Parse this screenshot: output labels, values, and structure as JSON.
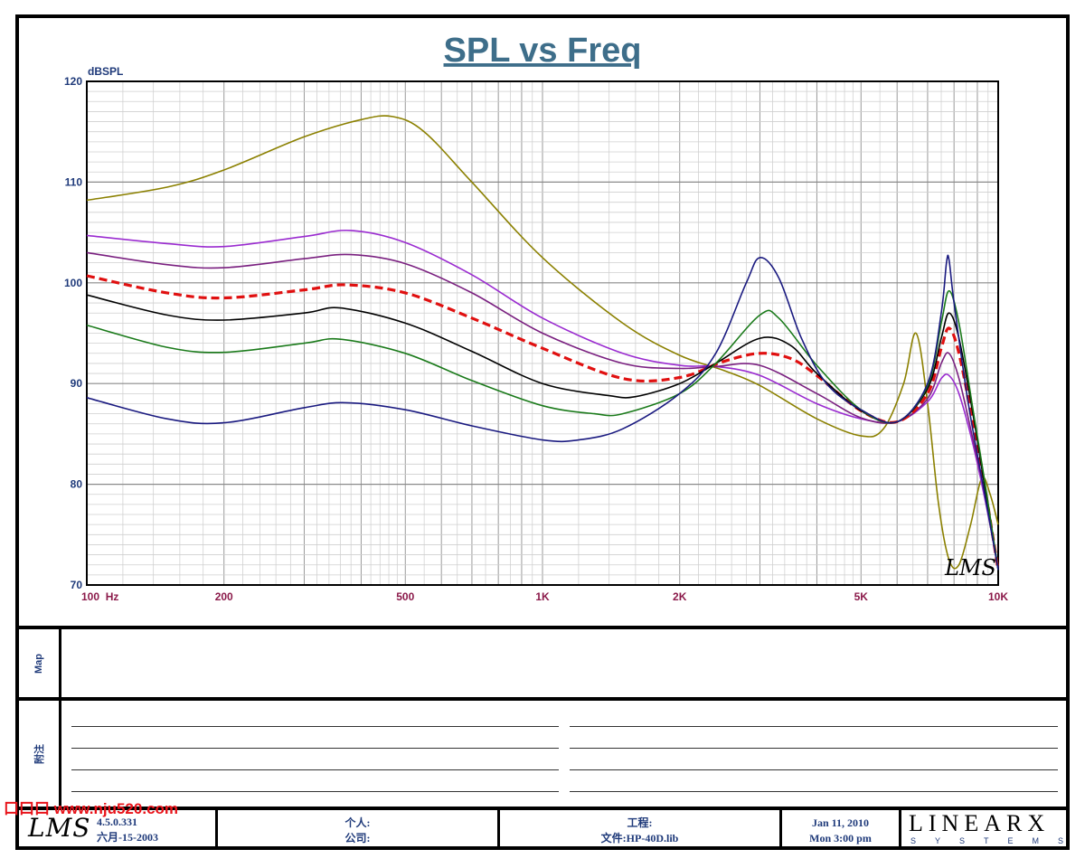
{
  "chart_data": {
    "type": "line",
    "title": "SPL vs Freq",
    "ylabel": "dBSPL",
    "xscale": "log",
    "xlim": [
      100,
      10000
    ],
    "ylim": [
      70,
      120
    ],
    "grid": true,
    "y_ticks": [
      70,
      80,
      90,
      100,
      110,
      120
    ],
    "x_ticks": [
      {
        "value": 100,
        "label": "100  Hz"
      },
      {
        "value": 200,
        "label": "200"
      },
      {
        "value": 500,
        "label": "500"
      },
      {
        "value": 1000,
        "label": "1K"
      },
      {
        "value": 2000,
        "label": "2K"
      },
      {
        "value": 5000,
        "label": "5K"
      },
      {
        "value": 10000,
        "label": "10K"
      }
    ],
    "series": [
      {
        "color": "#8b8000",
        "points": [
          [
            100,
            108.2
          ],
          [
            150,
            109.5
          ],
          [
            200,
            111.2
          ],
          [
            300,
            114.5
          ],
          [
            400,
            116.2
          ],
          [
            470,
            116.5
          ],
          [
            550,
            115.0
          ],
          [
            700,
            110.0
          ],
          [
            1000,
            102.5
          ],
          [
            1500,
            96.0
          ],
          [
            2000,
            92.8
          ],
          [
            2500,
            91.3
          ],
          [
            3000,
            89.8
          ],
          [
            4000,
            86.5
          ],
          [
            5000,
            84.8
          ],
          [
            5600,
            85.5
          ],
          [
            6200,
            90.0
          ],
          [
            6600,
            95.0
          ],
          [
            7000,
            88.0
          ],
          [
            7400,
            78.0
          ],
          [
            7800,
            72.5
          ],
          [
            8200,
            72.0
          ],
          [
            8700,
            76.0
          ],
          [
            9200,
            80.6
          ],
          [
            9600,
            79.0
          ],
          [
            10000,
            76.0
          ]
        ]
      },
      {
        "color": "#9a2bd0",
        "points": [
          [
            100,
            104.7
          ],
          [
            150,
            103.9
          ],
          [
            200,
            103.6
          ],
          [
            300,
            104.6
          ],
          [
            380,
            105.2
          ],
          [
            500,
            104.0
          ],
          [
            700,
            100.8
          ],
          [
            1000,
            96.5
          ],
          [
            1500,
            93.0
          ],
          [
            2000,
            91.8
          ],
          [
            2400,
            91.7
          ],
          [
            3000,
            90.8
          ],
          [
            4000,
            88.0
          ],
          [
            5000,
            86.5
          ],
          [
            6000,
            86.2
          ],
          [
            7000,
            88.2
          ],
          [
            7500,
            90.5
          ],
          [
            7800,
            90.8
          ],
          [
            8200,
            89.0
          ],
          [
            8800,
            84.0
          ],
          [
            9400,
            78.0
          ],
          [
            10000,
            71.8
          ]
        ]
      },
      {
        "color": "#7a2080",
        "points": [
          [
            100,
            103.0
          ],
          [
            150,
            101.8
          ],
          [
            200,
            101.5
          ],
          [
            300,
            102.4
          ],
          [
            380,
            102.8
          ],
          [
            500,
            101.9
          ],
          [
            700,
            99.0
          ],
          [
            1000,
            95.0
          ],
          [
            1500,
            92.0
          ],
          [
            2000,
            91.5
          ],
          [
            2400,
            91.7
          ],
          [
            3000,
            91.8
          ],
          [
            4000,
            89.0
          ],
          [
            5000,
            86.6
          ],
          [
            6000,
            86.2
          ],
          [
            7000,
            88.5
          ],
          [
            7500,
            92.0
          ],
          [
            7800,
            93.0
          ],
          [
            8200,
            90.5
          ],
          [
            8800,
            84.5
          ],
          [
            9400,
            78.5
          ],
          [
            10000,
            71.7
          ]
        ]
      },
      {
        "color": "#e01010",
        "dashed": true,
        "points": [
          [
            100,
            100.7
          ],
          [
            150,
            99.0
          ],
          [
            200,
            98.5
          ],
          [
            300,
            99.3
          ],
          [
            370,
            99.8
          ],
          [
            500,
            99.0
          ],
          [
            700,
            96.5
          ],
          [
            1000,
            93.5
          ],
          [
            1500,
            90.5
          ],
          [
            2000,
            90.6
          ],
          [
            2500,
            92.2
          ],
          [
            3000,
            93.0
          ],
          [
            3500,
            92.5
          ],
          [
            4000,
            90.8
          ],
          [
            5000,
            87.3
          ],
          [
            6000,
            86.2
          ],
          [
            7000,
            89.0
          ],
          [
            7500,
            93.5
          ],
          [
            7800,
            95.5
          ],
          [
            8200,
            93.0
          ],
          [
            8800,
            86.0
          ],
          [
            9400,
            79.0
          ],
          [
            10000,
            71.5
          ]
        ]
      },
      {
        "color": "#000000",
        "points": [
          [
            100,
            98.8
          ],
          [
            150,
            96.8
          ],
          [
            200,
            96.3
          ],
          [
            300,
            97.0
          ],
          [
            360,
            97.5
          ],
          [
            500,
            96.0
          ],
          [
            700,
            93.2
          ],
          [
            1000,
            90.0
          ],
          [
            1400,
            88.8
          ],
          [
            1600,
            88.7
          ],
          [
            2000,
            90.0
          ],
          [
            2400,
            92.0
          ],
          [
            3000,
            94.5
          ],
          [
            3500,
            93.8
          ],
          [
            4000,
            91.0
          ],
          [
            5000,
            87.3
          ],
          [
            6000,
            86.2
          ],
          [
            7000,
            89.5
          ],
          [
            7500,
            94.5
          ],
          [
            7800,
            97.0
          ],
          [
            8200,
            94.5
          ],
          [
            8800,
            87.0
          ],
          [
            9400,
            79.0
          ],
          [
            10000,
            71.5
          ]
        ]
      },
      {
        "color": "#1a7a1a",
        "points": [
          [
            100,
            95.8
          ],
          [
            150,
            93.6
          ],
          [
            200,
            93.1
          ],
          [
            300,
            94.0
          ],
          [
            360,
            94.4
          ],
          [
            500,
            93.0
          ],
          [
            700,
            90.3
          ],
          [
            1000,
            87.8
          ],
          [
            1300,
            87.0
          ],
          [
            1500,
            87.0
          ],
          [
            2000,
            89.0
          ],
          [
            2400,
            92.0
          ],
          [
            3000,
            96.8
          ],
          [
            3300,
            96.5
          ],
          [
            4000,
            91.8
          ],
          [
            5000,
            87.4
          ],
          [
            6000,
            86.2
          ],
          [
            7000,
            89.8
          ],
          [
            7500,
            96.0
          ],
          [
            7800,
            99.2
          ],
          [
            8200,
            96.0
          ],
          [
            8800,
            87.5
          ],
          [
            9400,
            79.5
          ],
          [
            10000,
            71.5
          ]
        ]
      },
      {
        "color": "#1a1a80",
        "points": [
          [
            100,
            88.6
          ],
          [
            150,
            86.5
          ],
          [
            200,
            86.1
          ],
          [
            300,
            87.6
          ],
          [
            370,
            88.1
          ],
          [
            500,
            87.4
          ],
          [
            700,
            85.8
          ],
          [
            1000,
            84.4
          ],
          [
            1200,
            84.4
          ],
          [
            1500,
            85.5
          ],
          [
            2000,
            89.0
          ],
          [
            2400,
            93.0
          ],
          [
            2800,
            100.0
          ],
          [
            3000,
            102.5
          ],
          [
            3300,
            100.5
          ],
          [
            3700,
            94.5
          ],
          [
            4200,
            90.0
          ],
          [
            5000,
            87.4
          ],
          [
            6000,
            86.2
          ],
          [
            7000,
            90.0
          ],
          [
            7500,
            97.0
          ],
          [
            7700,
            102.0
          ],
          [
            7800,
            102.3
          ],
          [
            8000,
            98.0
          ],
          [
            8600,
            88.0
          ],
          [
            9300,
            79.5
          ],
          [
            10000,
            71.5
          ]
        ]
      }
    ]
  },
  "panels": {
    "map_label": "Map",
    "notes_label": "附注"
  },
  "watermark": "口口口 www.nju520.com",
  "footer": {
    "logo": "LMS",
    "version": "4.5.0.331",
    "version_date": "六月-15-2003",
    "user_label": "个人:",
    "company_label": "公司:",
    "project_label": "工程:",
    "file_label": "文件:HP-40D.lib",
    "date": "Jan 11, 2010",
    "time": "Mon  3:00 pm",
    "brand_main": "LINEARX",
    "brand_sub": "SYSTEMS"
  },
  "plot_watermark": "LMS"
}
